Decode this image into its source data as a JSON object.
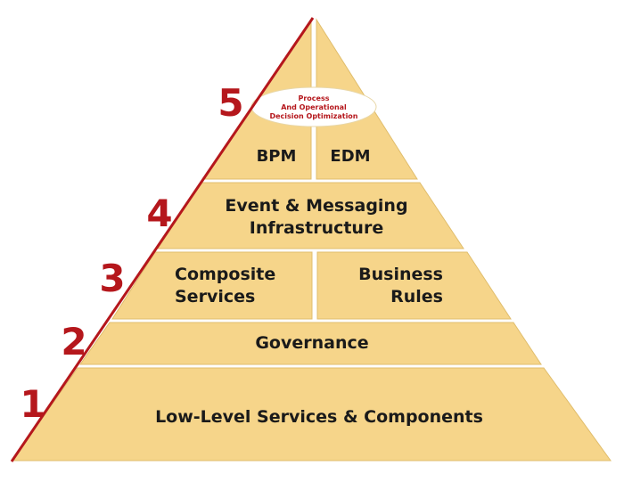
{
  "colors": {
    "fill": "#f6d58a",
    "stroke": "#dcb662",
    "edge": "#b5171c",
    "text": "#1a1a1a",
    "accent": "#b5171c",
    "oval": "#ffffff"
  },
  "levels": [
    {
      "number": "1",
      "label": "Low-Level Services & Components"
    },
    {
      "number": "2",
      "label": "Governance"
    },
    {
      "number": "3",
      "left": "Composite Services",
      "left_line1": "Composite",
      "left_line2": "Services",
      "right_line1": "Business",
      "right_line2": "Rules"
    },
    {
      "number": "4",
      "line1": "Event & Messaging",
      "line2": "Infrastructure"
    },
    {
      "number": "5",
      "left": "BPM",
      "right": "EDM",
      "oval_line1": "Process",
      "oval_line2": "And Operational",
      "oval_line3": "Decision Optimization"
    }
  ]
}
